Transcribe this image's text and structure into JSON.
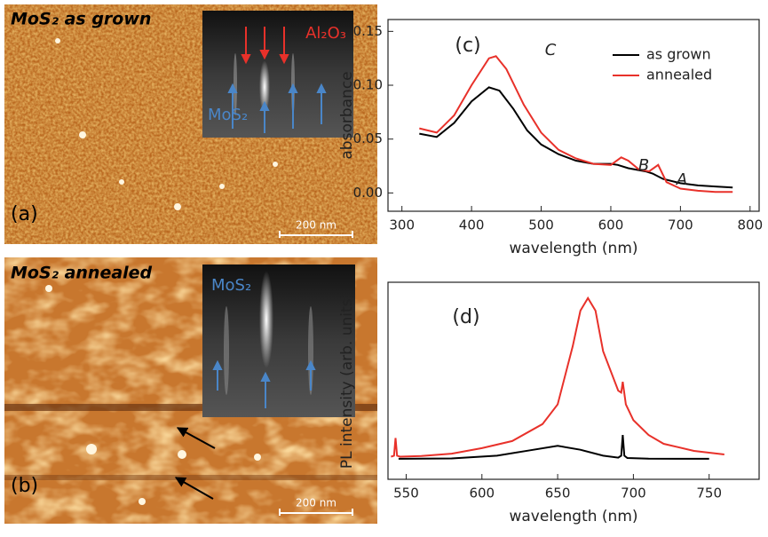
{
  "image_panels": [
    {
      "title": "MoS₂ as grown",
      "label": "(a)",
      "scale_bar": "200 nm",
      "inset_labels": [
        "Al₂O₃",
        "MoS₂"
      ]
    },
    {
      "title": "MoS₂ annealed",
      "label": "(b)",
      "scale_bar": "200 nm",
      "inset_labels": [
        "MoS₂"
      ]
    }
  ],
  "chart_data": [
    {
      "type": "line",
      "panel_label": "(c)",
      "x_label": "wavelength (nm)",
      "y_label": "absorbance",
      "xlim": [
        280,
        813
      ],
      "xticks": [
        300,
        400,
        500,
        600,
        700,
        800
      ],
      "ylim": [
        -0.017,
        0.161
      ],
      "yticks": [
        {
          "value": 0,
          "label": "0.00"
        },
        {
          "value": 0.05,
          "label": "0.05"
        },
        {
          "value": 0.1,
          "label": "0.10"
        },
        {
          "value": 0.15,
          "label": "0.15"
        }
      ],
      "legend": "top-right",
      "annotations": [
        "C",
        "B",
        "A"
      ],
      "series": [
        {
          "name": "as grown",
          "color": "#000000",
          "x": [
            325,
            350,
            375,
            400,
            425,
            440,
            460,
            480,
            500,
            525,
            550,
            575,
            600,
            610,
            625,
            650,
            660,
            675,
            700,
            725,
            750,
            775
          ],
          "values": [
            0.055,
            0.052,
            0.065,
            0.085,
            0.098,
            0.095,
            0.078,
            0.058,
            0.045,
            0.036,
            0.03,
            0.027,
            0.027,
            0.026,
            0.023,
            0.02,
            0.018,
            0.013,
            0.009,
            0.007,
            0.006,
            0.005
          ]
        },
        {
          "name": "annealed",
          "color": "#e8312a",
          "x": [
            325,
            350,
            375,
            400,
            425,
            435,
            450,
            475,
            500,
            525,
            550,
            575,
            600,
            615,
            625,
            640,
            655,
            668,
            680,
            700,
            725,
            750,
            775
          ],
          "values": [
            0.06,
            0.056,
            0.072,
            0.1,
            0.125,
            0.127,
            0.115,
            0.082,
            0.056,
            0.04,
            0.032,
            0.027,
            0.026,
            0.033,
            0.03,
            0.022,
            0.02,
            0.026,
            0.01,
            0.004,
            0.002,
            0.001,
            0.001
          ]
        }
      ]
    },
    {
      "type": "line",
      "panel_label": "(d)",
      "x_label": "wavelength (nm)",
      "y_label": "PL intensity (arb. units)",
      "xlim": [
        538,
        783
      ],
      "xticks": [
        550,
        600,
        650,
        700,
        750
      ],
      "ylim": [
        0,
        100
      ],
      "series": [
        {
          "name": "annealed",
          "color": "#e8312a",
          "x": [
            540,
            542,
            543,
            544,
            546,
            560,
            580,
            600,
            620,
            640,
            650,
            660,
            665,
            670,
            675,
            680,
            690,
            692,
            693,
            695,
            700,
            710,
            720,
            740,
            760
          ],
          "values": [
            11.5,
            12,
            21,
            12,
            11.5,
            11.8,
            13,
            15.8,
            19.4,
            28,
            38,
            67.6,
            85.6,
            92,
            85.6,
            65,
            45,
            44,
            49.5,
            38,
            30,
            22.5,
            18,
            14.4,
            12.6
          ]
        },
        {
          "name": "as grown",
          "color": "#000000",
          "x": [
            545,
            580,
            610,
            630,
            650,
            665,
            680,
            690,
            692,
            693,
            694,
            696,
            710,
            730,
            750
          ],
          "values": [
            10.4,
            10.6,
            12,
            14.5,
            17,
            15,
            12,
            11,
            12,
            22.5,
            12,
            10.8,
            10.5,
            10.4,
            10.4
          ]
        }
      ]
    }
  ]
}
